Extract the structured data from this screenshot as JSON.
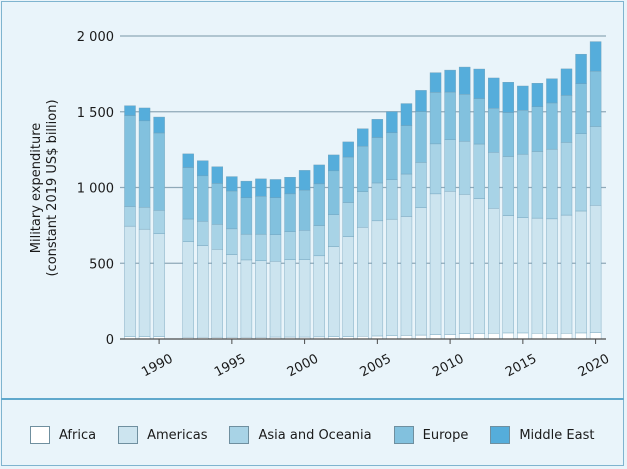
{
  "chart_data": {
    "type": "bar",
    "stacked": true,
    "title": "",
    "xlabel": "",
    "ylabel": "Military expenditure\n(constant 2019 US$ billion)",
    "ylim": [
      0,
      2000
    ],
    "yticks": [
      0,
      500,
      1000,
      1500,
      2000
    ],
    "ytick_labels": [
      "0",
      "500",
      "1 000",
      "1 500",
      "2 000"
    ],
    "xticks": [
      1990,
      1995,
      2000,
      2005,
      2010,
      2015,
      2020
    ],
    "xtick_labels": [
      "1990",
      "1995",
      "2000",
      "2005",
      "2010",
      "2015",
      "2020"
    ],
    "grid": "horizontal",
    "legend_position": "bottom",
    "x": [
      1988,
      1989,
      1990,
      1991,
      1992,
      1993,
      1994,
      1995,
      1996,
      1997,
      1998,
      1999,
      2000,
      2001,
      2002,
      2003,
      2004,
      2005,
      2006,
      2007,
      2008,
      2009,
      2010,
      2011,
      2012,
      2013,
      2014,
      2015,
      2016,
      2017,
      2018,
      2019,
      2020
    ],
    "series": [
      {
        "name": "Africa",
        "color": "#ffffff",
        "values": [
          15,
          15,
          15,
          null,
          12,
          12,
          12,
          12,
          12,
          12,
          13,
          13,
          13,
          14,
          15,
          16,
          18,
          20,
          21,
          24,
          26,
          28,
          30,
          35,
          37,
          38,
          40,
          40,
          38,
          38,
          38,
          40,
          43
        ]
      },
      {
        "name": "Americas",
        "color": "#cce4ef",
        "values": [
          730,
          710,
          680,
          null,
          630,
          605,
          580,
          545,
          510,
          505,
          500,
          510,
          510,
          535,
          595,
          660,
          720,
          760,
          770,
          785,
          840,
          930,
          945,
          920,
          890,
          825,
          775,
          760,
          760,
          755,
          780,
          805,
          840
        ]
      },
      {
        "name": "Asia and Oceania",
        "color": "#a8d3e6",
        "values": [
          130,
          145,
          155,
          null,
          150,
          160,
          165,
          170,
          170,
          175,
          175,
          185,
          195,
          200,
          210,
          225,
          235,
          250,
          260,
          280,
          300,
          330,
          340,
          350,
          360,
          370,
          390,
          420,
          440,
          460,
          480,
          510,
          520
        ]
      },
      {
        "name": "Europe",
        "color": "#82c1de",
        "values": [
          600,
          570,
          510,
          null,
          340,
          300,
          270,
          250,
          240,
          250,
          245,
          250,
          265,
          275,
          290,
          300,
          300,
          300,
          310,
          320,
          335,
          340,
          315,
          310,
          300,
          290,
          290,
          290,
          295,
          305,
          310,
          330,
          365
        ]
      },
      {
        "name": "Middle East",
        "color": "#55addb",
        "values": [
          65,
          85,
          105,
          null,
          90,
          100,
          110,
          95,
          110,
          115,
          120,
          110,
          130,
          125,
          105,
          100,
          115,
          120,
          140,
          145,
          140,
          130,
          145,
          180,
          195,
          200,
          200,
          160,
          155,
          160,
          175,
          195,
          195
        ]
      }
    ]
  }
}
